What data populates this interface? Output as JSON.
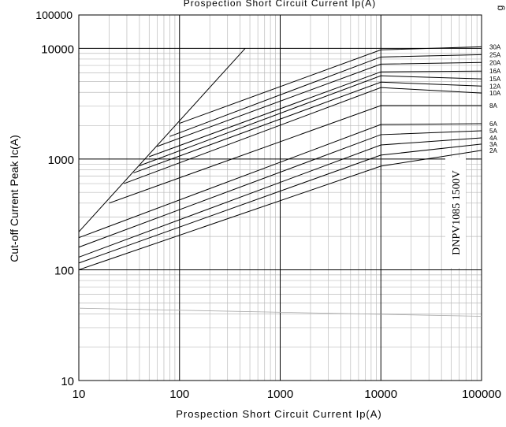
{
  "chart_data": {
    "type": "line",
    "title": "Prospection Short Circuit Current Ip(A)",
    "x_label": "Prospection Short Circuit Current Ip(A)",
    "y_label": "Cut-off Current Peak Ic(A)",
    "annotations": [
      "100000",
      "DNPV1085 1500V",
      "g"
    ],
    "log_x": true,
    "log_y": true,
    "grid": true,
    "xlim": [
      10,
      100000
    ],
    "ylim": [
      10,
      20000
    ],
    "xticks": [
      10,
      100,
      1000,
      10000,
      100000
    ],
    "yticks": [
      10,
      100,
      1000,
      10000
    ],
    "series": [
      {
        "name": "30A",
        "color": "#000000",
        "x": [
          100,
          10000,
          100000
        ],
        "values": [
          2100,
          9680,
          10330
        ]
      },
      {
        "name": "25A",
        "color": "#000000",
        "x": [
          80,
          10000,
          100000
        ],
        "values": [
          1600,
          8350,
          8770
        ]
      },
      {
        "name": "20A",
        "color": "#000000",
        "x": [
          60,
          10000,
          100000
        ],
        "values": [
          1300,
          7200,
          7450
        ]
      },
      {
        "name": "16A",
        "color": "#000000",
        "x": [
          50,
          10000,
          100000
        ],
        "values": [
          1050,
          6130,
          6230
        ]
      },
      {
        "name": "15A",
        "color": "#000000",
        "x": [
          40,
          10000,
          100000
        ],
        "values": [
          870,
          5650,
          5290
        ]
      },
      {
        "name": "12A",
        "color": "#000000",
        "x": [
          35,
          10000,
          100000
        ],
        "values": [
          750,
          4950,
          4560
        ]
      },
      {
        "name": "10A",
        "color": "#000000",
        "x": [
          28,
          10000,
          100000
        ],
        "values": [
          600,
          4420,
          3940
        ]
      },
      {
        "name": "8A",
        "color": "#000000",
        "x": [
          20,
          10000,
          100000
        ],
        "values": [
          400,
          3040,
          3040
        ]
      },
      {
        "name": "6A",
        "color": "#000000",
        "x": [
          10,
          10000,
          100000
        ],
        "values": [
          195,
          2050,
          2085
        ]
      },
      {
        "name": "5A",
        "color": "#000000",
        "x": [
          10,
          10000,
          100000
        ],
        "values": [
          160,
          1660,
          1800
        ]
      },
      {
        "name": "4A",
        "color": "#000000",
        "x": [
          10,
          10000,
          100000
        ],
        "values": [
          130,
          1340,
          1554
        ]
      },
      {
        "name": "3A",
        "color": "#000000",
        "x": [
          10,
          10000,
          100000
        ],
        "values": [
          115,
          1085,
          1364
        ]
      },
      {
        "name": "2A",
        "color": "#000000",
        "x": [
          10,
          10000,
          100000
        ],
        "values": [
          100,
          863,
          1197
        ]
      }
    ],
    "limit_line": {
      "color": "#000000",
      "x": [
        10,
        450
      ],
      "values": [
        220,
        10000
      ]
    },
    "faint_line": {
      "color": "#aaaaaa",
      "x": [
        10,
        100000
      ],
      "values": [
        45,
        38
      ]
    }
  }
}
